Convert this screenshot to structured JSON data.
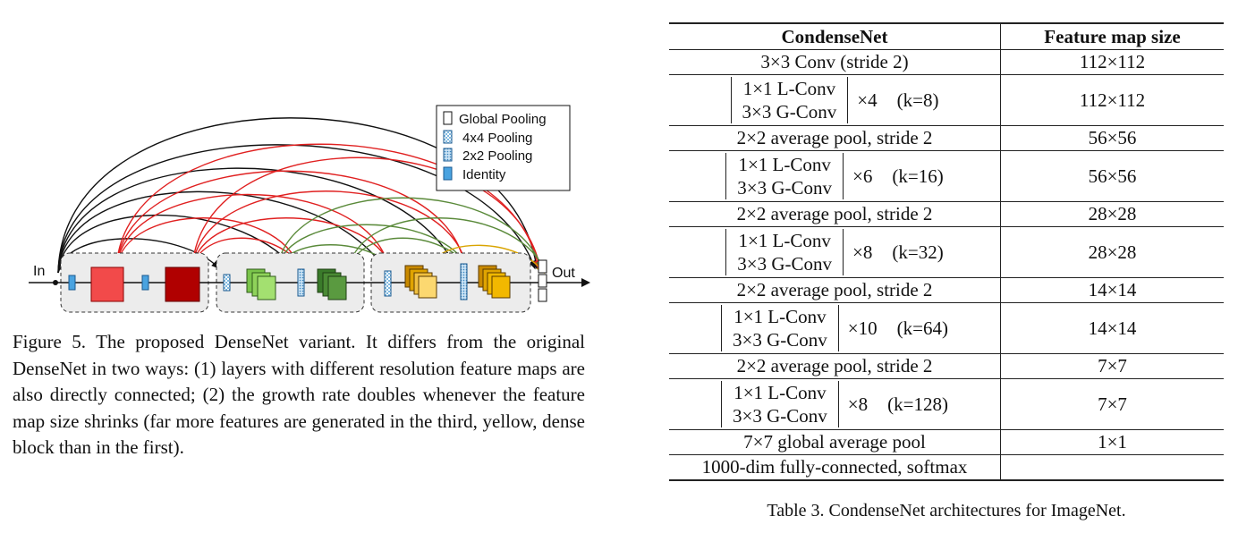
{
  "figure": {
    "legend": [
      {
        "label": "Global Pooling",
        "pattern": "plain"
      },
      {
        "label": "4x4 Pooling",
        "pattern": "checker"
      },
      {
        "label": "2x2 Pooling",
        "pattern": "dots"
      },
      {
        "label": "Identity",
        "pattern": "solid-blue"
      }
    ],
    "input_label": "In",
    "output_label": "Out",
    "colors": {
      "block1": "#d62020",
      "block2": "#5da63a",
      "block3": "#f2b800",
      "arc_black": "#111111",
      "arc_red": "#e02020",
      "arc_green": "#5a8a3a",
      "arc_yellow": "#d9a400",
      "identity": "#4aa3e0"
    },
    "caption": "Figure 5. The proposed DenseNet variant. It differs from the original DenseNet in two ways: (1) layers with different resolution feature maps are also directly connected; (2) the growth rate doubles whenever the feature map size shrinks (far more features are generated in the third, yellow, dense block than in the first)."
  },
  "table": {
    "headers": [
      "CondenseNet",
      "Feature map size"
    ],
    "rows": [
      {
        "type": "single",
        "layer": "3×3 Conv (stride 2)",
        "size": "112×112"
      },
      {
        "type": "block",
        "line1": "1×1 L-Conv",
        "line2": "3×3 G-Conv",
        "mult": "×4",
        "growth": "(k=8)",
        "size": "112×112"
      },
      {
        "type": "single",
        "layer": "2×2 average pool, stride 2",
        "size": "56×56"
      },
      {
        "type": "block",
        "line1": "1×1 L-Conv",
        "line2": "3×3 G-Conv",
        "mult": "×6",
        "growth": "(k=16)",
        "size": "56×56"
      },
      {
        "type": "single",
        "layer": "2×2 average pool, stride 2",
        "size": "28×28"
      },
      {
        "type": "block",
        "line1": "1×1 L-Conv",
        "line2": "3×3 G-Conv",
        "mult": "×8",
        "growth": "(k=32)",
        "size": "28×28"
      },
      {
        "type": "single",
        "layer": "2×2 average pool, stride 2",
        "size": "14×14"
      },
      {
        "type": "block",
        "line1": "1×1 L-Conv",
        "line2": "3×3 G-Conv",
        "mult": "×10",
        "growth": "(k=64)",
        "size": "14×14"
      },
      {
        "type": "single",
        "layer": "2×2 average pool, stride 2",
        "size": "7×7"
      },
      {
        "type": "block",
        "line1": "1×1 L-Conv",
        "line2": "3×3 G-Conv",
        "mult": "×8",
        "growth": "(k=128)",
        "size": "7×7"
      },
      {
        "type": "single",
        "layer": "7×7 global average pool",
        "size": "1×1"
      },
      {
        "type": "single",
        "layer": "1000-dim fully-connected, softmax",
        "size": ""
      }
    ],
    "caption": "Table 3. CondenseNet architectures for ImageNet."
  }
}
